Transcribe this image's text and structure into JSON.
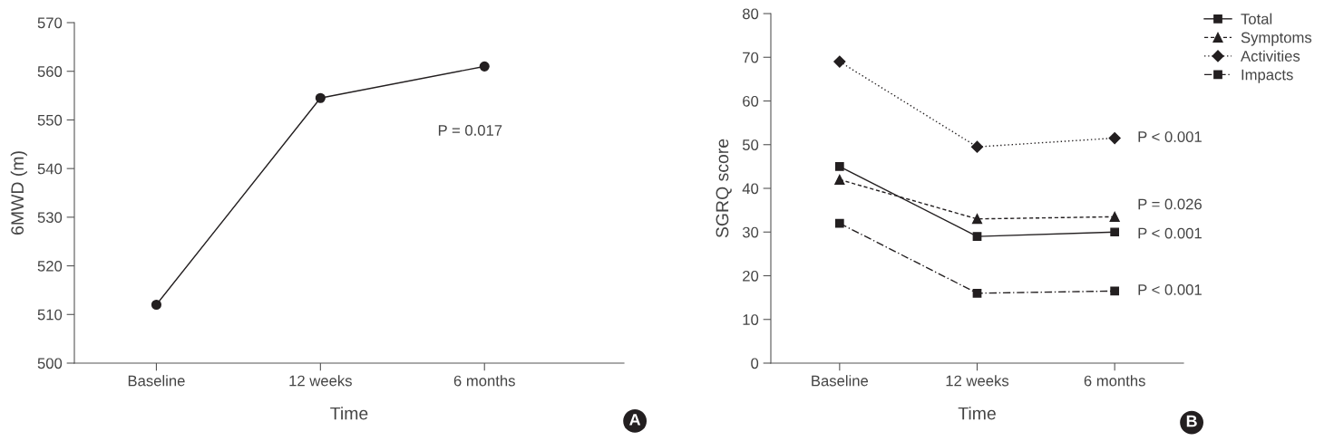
{
  "chart_data": [
    {
      "type": "line",
      "xlabel": "Time",
      "ylabel": "6MWD (m)",
      "categories": [
        "Baseline",
        "12 weeks",
        "6 months"
      ],
      "series": [
        {
          "color": "#231f20",
          "values": [
            512,
            554.5,
            561
          ],
          "marker": "circle",
          "line_style": "solid"
        }
      ],
      "ylim": [
        500,
        570
      ],
      "yticks": [
        500,
        510,
        520,
        530,
        540,
        550,
        560,
        570
      ],
      "grid": false,
      "legend": false,
      "annotations": [
        "P = 0.017",
        "A"
      ]
    },
    {
      "type": "line",
      "xlabel": "Time",
      "ylabel": "SGRQ score",
      "categories": [
        "Baseline",
        "12 weeks",
        "6 months"
      ],
      "series": [
        {
          "name": "Total",
          "color": "#231f20",
          "values": [
            45,
            29,
            30
          ],
          "marker": "square",
          "line_style": "solid"
        },
        {
          "name": "Symptoms",
          "color": "#231f20",
          "values": [
            42,
            33,
            33.5
          ],
          "marker": "triangle",
          "line_style": "dashed"
        },
        {
          "name": "Activities",
          "color": "#231f20",
          "values": [
            69,
            49.5,
            51.5
          ],
          "marker": "diamond",
          "line_style": "dotted"
        },
        {
          "name": "Impacts",
          "color": "#231f20",
          "values": [
            32,
            16,
            16.5
          ],
          "marker": "square",
          "line_style": "dashdot"
        }
      ],
      "ylim": [
        0,
        80
      ],
      "yticks": [
        0,
        10,
        20,
        30,
        40,
        50,
        60,
        70,
        80
      ],
      "grid": false,
      "legend": "top right",
      "annotations": [
        {
          "text": "P < 0.001",
          "x": "6 months",
          "y": 51.5
        },
        {
          "text": "P = 0.026",
          "x": "6 months",
          "y": 33.5
        },
        {
          "text": "P < 0.001",
          "x": "6 months",
          "y": 30
        },
        {
          "text": "P < 0.001",
          "x": "6 months",
          "y": 16.5
        },
        "B"
      ]
    }
  ]
}
